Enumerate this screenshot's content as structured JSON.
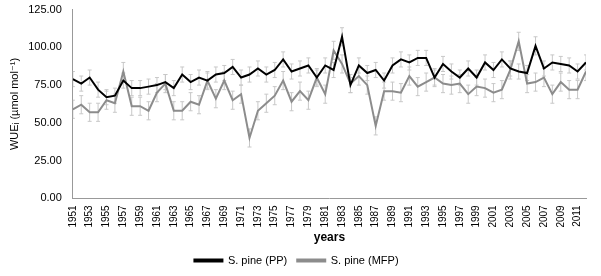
{
  "chart_data": {
    "type": "line",
    "x_label": "years",
    "y_label": "WUEᵢ (µmol mol⁻¹)",
    "categories": [
      "1951",
      null,
      "1953",
      null,
      "1955",
      null,
      "1957",
      null,
      "1959",
      null,
      "1961",
      null,
      "1963",
      null,
      "1965",
      null,
      "1967",
      null,
      "1969",
      null,
      "1971",
      null,
      "1973",
      null,
      "1975",
      null,
      "1977",
      null,
      "1979",
      null,
      "1981",
      null,
      "1983",
      null,
      "1985",
      null,
      "1987",
      null,
      "1989",
      null,
      "1991",
      null,
      "1993",
      null,
      "1995",
      null,
      "1997",
      null,
      "1999",
      null,
      "2001",
      null,
      "2003",
      null,
      "2005",
      null,
      "2007",
      null,
      "2009",
      null,
      "2011",
      null
    ],
    "series": [
      {
        "name": "S. pine (PP)",
        "color": "#000000",
        "values": [
          79,
          76,
          80,
          72,
          67,
          68,
          78,
          73,
          73,
          74,
          75,
          77,
          73,
          82,
          77,
          80,
          78,
          82,
          83,
          87,
          80,
          82,
          86,
          82,
          85,
          92,
          84,
          86,
          88,
          80,
          88,
          85,
          107,
          75,
          88,
          83,
          85,
          78,
          88,
          92,
          90,
          93,
          93,
          80,
          89,
          84,
          80,
          86,
          80,
          90,
          85,
          92,
          86,
          84,
          83,
          101,
          86,
          90,
          89,
          88,
          84,
          90
        ],
        "errors": [
          5,
          5,
          5,
          5,
          5,
          5,
          5,
          5,
          5,
          5,
          5,
          5,
          5,
          5,
          5,
          5,
          5,
          5,
          5,
          5,
          5,
          5,
          5,
          5,
          5,
          5,
          5,
          5,
          5,
          5,
          5,
          5,
          6,
          5,
          5,
          5,
          5,
          5,
          5,
          5,
          5,
          5,
          5,
          5,
          5,
          5,
          5,
          5,
          5,
          5,
          5,
          5,
          5,
          5,
          5,
          6,
          5,
          5,
          5,
          5,
          5,
          5
        ]
      },
      {
        "name": "S. pine (MFP)",
        "color": "#8c8c8c",
        "values": [
          59,
          62,
          57,
          57,
          65,
          63,
          84,
          61,
          61,
          58,
          70,
          76,
          58,
          58,
          64,
          62,
          78,
          66,
          78,
          65,
          69,
          40,
          58,
          63,
          68,
          78,
          64,
          71,
          65,
          80,
          69,
          98,
          89,
          76,
          81,
          75,
          48,
          71,
          71,
          70,
          81,
          74,
          77,
          80,
          76,
          75,
          76,
          69,
          74,
          73,
          70,
          72,
          85,
          104,
          76,
          77,
          80,
          69,
          77,
          72,
          72,
          84
        ],
        "errors": [
          6,
          6,
          6,
          6,
          6,
          6,
          6,
          6,
          6,
          6,
          6,
          6,
          6,
          6,
          6,
          6,
          6,
          6,
          6,
          6,
          6,
          6,
          6,
          6,
          6,
          6,
          6,
          6,
          6,
          6,
          6,
          6,
          6,
          6,
          6,
          6,
          6,
          6,
          6,
          6,
          6,
          6,
          6,
          6,
          6,
          6,
          6,
          6,
          6,
          6,
          6,
          6,
          6,
          6,
          6,
          6,
          6,
          6,
          6,
          6,
          6,
          6
        ]
      }
    ],
    "ylim": [
      0,
      125
    ],
    "yticks": [
      {
        "value": 0,
        "label": "0.00"
      },
      {
        "value": 25,
        "label": "25.00"
      },
      {
        "value": 50,
        "label": "50.00"
      },
      {
        "value": 75,
        "label": "75.00"
      },
      {
        "value": 100,
        "label": "100.00"
      },
      {
        "value": 125,
        "label": "125.00"
      }
    ],
    "grid": false,
    "legend": "bottom"
  }
}
